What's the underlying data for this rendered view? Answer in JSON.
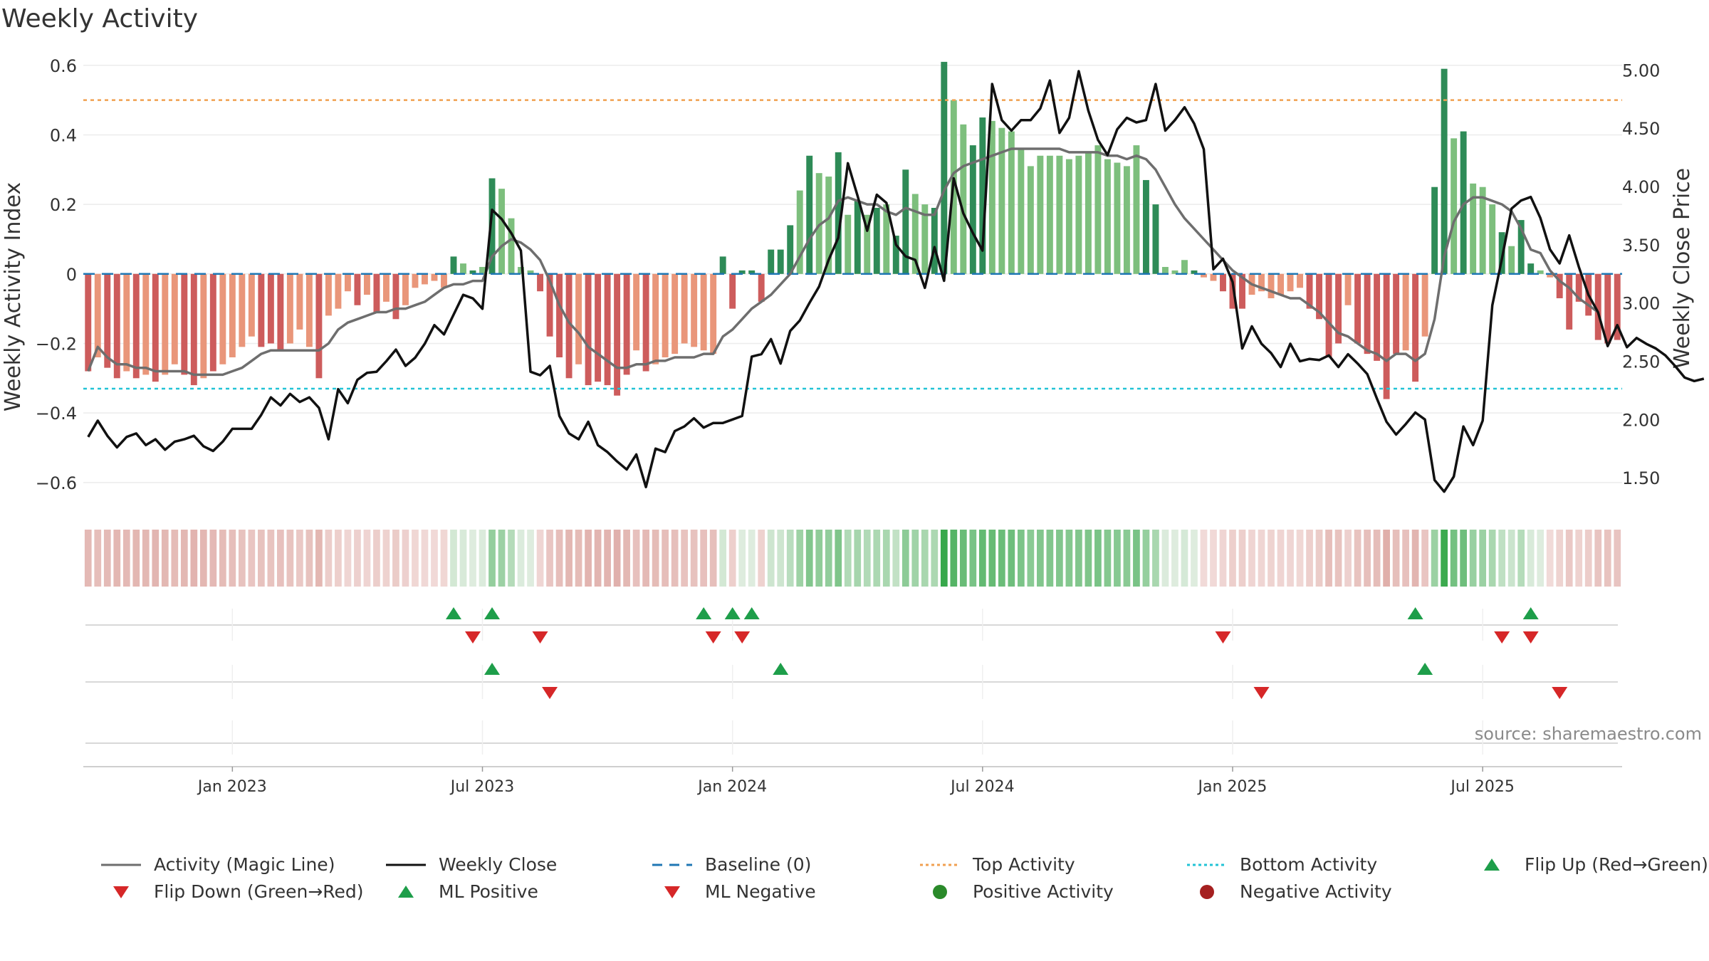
{
  "title": "Weekly Activity",
  "source": "source: sharemaestro.com",
  "colors": {
    "pos_dark": "#2e8b57",
    "pos_light": "#7dbf7d",
    "neg_dark": "#cd5c5c",
    "neg_light": "#e9967a",
    "magic_line": "#6e6e6e",
    "close_line": "#111111",
    "baseline": "#1f77b4",
    "top": "#f0a050",
    "bottom": "#22c3d6",
    "up": "#1e9e4a",
    "down": "#d62728"
  },
  "chart_data": {
    "type": "bar",
    "title": "Weekly Activity",
    "ylabel_left": "Weekly Activity Index",
    "ylabel_right": "Weekly Close Price",
    "ylim_left": [
      -0.67,
      0.62
    ],
    "ylim_right": [
      1.25,
      5.1
    ],
    "yticks_left": [
      0.6,
      0.4,
      0.2,
      0,
      -0.2,
      -0.4,
      -0.6
    ],
    "ytick_labels_left": [
      "0.6",
      "0.4",
      "0.2",
      "0",
      "−0.2",
      "−0.4",
      "−0.6"
    ],
    "yticks_right": [
      5.0,
      4.5,
      4.0,
      3.5,
      3.0,
      2.5,
      2.0,
      1.5
    ],
    "ytick_labels_right": [
      "5.00",
      "4.50",
      "4.00",
      "3.50",
      "3.00",
      "2.50",
      "2.00",
      "1.50"
    ],
    "top_activity": 0.5,
    "bottom_activity": -0.33,
    "baseline": 0,
    "x_start_week_index": 0,
    "xtick_labels": [
      "Jan 2023",
      "Jul 2023",
      "Jan 2024",
      "Jul 2024",
      "Jan 2025",
      "Jul 2025"
    ],
    "xtick_weeks": [
      15,
      41,
      67,
      93,
      119,
      145
    ],
    "activity": [
      -0.28,
      -0.24,
      -0.27,
      -0.3,
      -0.28,
      -0.3,
      -0.29,
      -0.31,
      -0.29,
      -0.26,
      -0.29,
      -0.32,
      -0.3,
      -0.28,
      -0.26,
      -0.24,
      -0.21,
      -0.18,
      -0.21,
      -0.2,
      -0.22,
      -0.2,
      -0.16,
      -0.21,
      -0.3,
      -0.12,
      -0.1,
      -0.05,
      -0.09,
      -0.06,
      -0.11,
      -0.08,
      -0.13,
      -0.09,
      -0.04,
      -0.03,
      -0.02,
      -0.04,
      0.05,
      0.03,
      0.01,
      0.02,
      0.275,
      0.245,
      0.16,
      0.02,
      0.01,
      -0.05,
      -0.18,
      -0.24,
      -0.3,
      -0.26,
      -0.32,
      -0.31,
      -0.32,
      -0.35,
      -0.29,
      -0.22,
      -0.28,
      -0.26,
      -0.24,
      -0.23,
      -0.2,
      -0.21,
      -0.22,
      -0.23,
      0.05,
      -0.1,
      0.01,
      0.01,
      -0.08,
      0.07,
      0.07,
      0.14,
      0.24,
      0.34,
      0.29,
      0.28,
      0.35,
      0.17,
      0.21,
      0.17,
      0.19,
      0.2,
      0.11,
      0.3,
      0.23,
      0.2,
      0.19,
      0.61,
      0.5,
      0.43,
      0.37,
      0.45,
      0.44,
      0.42,
      0.41,
      0.36,
      0.31,
      0.34,
      0.34,
      0.34,
      0.33,
      0.34,
      0.35,
      0.37,
      0.33,
      0.32,
      0.31,
      0.37,
      0.27,
      0.2,
      0.02,
      0.01,
      0.04,
      0.01,
      -0.01,
      -0.02,
      -0.05,
      -0.1,
      -0.1,
      -0.06,
      -0.05,
      -0.07,
      -0.06,
      -0.05,
      -0.04,
      -0.1,
      -0.13,
      -0.24,
      -0.2,
      -0.09,
      -0.2,
      -0.23,
      -0.25,
      -0.36,
      -0.23,
      -0.22,
      -0.31,
      -0.18,
      0.25,
      0.59,
      0.39,
      0.41,
      0.26,
      0.25,
      0.2,
      0.12,
      0.08,
      0.155,
      0.03,
      0.01,
      -0.01,
      -0.07,
      -0.16,
      -0.08,
      -0.12,
      -0.19,
      -0.2,
      -0.19
    ],
    "bar_intensity": [
      1,
      0,
      1,
      1,
      0,
      1,
      0,
      1,
      0,
      0,
      1,
      1,
      0,
      1,
      0,
      0,
      0,
      0,
      1,
      1,
      1,
      0,
      0,
      0,
      1,
      0,
      0,
      0,
      1,
      0,
      1,
      0,
      1,
      0,
      0,
      0,
      0,
      0,
      1,
      0,
      1,
      0,
      1,
      0,
      0,
      0,
      0,
      1,
      1,
      1,
      1,
      0,
      1,
      1,
      1,
      1,
      1,
      0,
      1,
      0,
      0,
      0,
      0,
      0,
      0,
      0,
      1,
      1,
      1,
      1,
      1,
      1,
      1,
      1,
      0,
      1,
      0,
      0,
      1,
      0,
      1,
      0,
      1,
      0,
      1,
      1,
      0,
      0,
      1,
      1,
      0,
      0,
      1,
      1,
      0,
      0,
      0,
      0,
      0,
      0,
      0,
      0,
      0,
      0,
      0,
      0,
      0,
      0,
      0,
      0,
      1,
      1,
      0,
      0,
      0,
      1,
      0,
      0,
      1,
      1,
      1,
      0,
      0,
      0,
      0,
      0,
      0,
      1,
      1,
      1,
      1,
      0,
      1,
      1,
      1,
      1,
      1,
      0,
      1,
      0,
      1,
      1,
      0,
      1,
      0,
      0,
      0,
      1,
      0,
      1,
      1,
      0,
      0,
      1,
      1,
      1,
      1,
      1,
      1,
      1
    ],
    "magic_line": [
      -0.28,
      -0.21,
      -0.24,
      -0.26,
      -0.26,
      -0.27,
      -0.27,
      -0.28,
      -0.28,
      -0.28,
      -0.28,
      -0.29,
      -0.29,
      -0.29,
      -0.29,
      -0.28,
      -0.27,
      -0.25,
      -0.23,
      -0.22,
      -0.22,
      -0.22,
      -0.22,
      -0.22,
      -0.22,
      -0.2,
      -0.16,
      -0.14,
      -0.13,
      -0.12,
      -0.11,
      -0.11,
      -0.1,
      -0.1,
      -0.09,
      -0.08,
      -0.06,
      -0.04,
      -0.03,
      -0.03,
      -0.02,
      -0.02,
      0.05,
      0.08,
      0.1,
      0.09,
      0.07,
      0.04,
      -0.02,
      -0.09,
      -0.14,
      -0.17,
      -0.21,
      -0.23,
      -0.25,
      -0.27,
      -0.27,
      -0.26,
      -0.26,
      -0.25,
      -0.25,
      -0.24,
      -0.24,
      -0.24,
      -0.23,
      -0.23,
      -0.18,
      -0.16,
      -0.13,
      -0.1,
      -0.08,
      -0.06,
      -0.03,
      0,
      0.05,
      0.1,
      0.14,
      0.16,
      0.21,
      0.22,
      0.21,
      0.2,
      0.2,
      0.18,
      0.17,
      0.19,
      0.18,
      0.17,
      0.17,
      0.24,
      0.29,
      0.31,
      0.32,
      0.33,
      0.34,
      0.35,
      0.36,
      0.36,
      0.36,
      0.36,
      0.36,
      0.36,
      0.35,
      0.35,
      0.35,
      0.35,
      0.34,
      0.34,
      0.33,
      0.34,
      0.33,
      0.3,
      0.25,
      0.2,
      0.16,
      0.13,
      0.1,
      0.07,
      0.04,
      0.01,
      -0.01,
      -0.03,
      -0.04,
      -0.05,
      -0.06,
      -0.07,
      -0.07,
      -0.09,
      -0.11,
      -0.14,
      -0.17,
      -0.18,
      -0.2,
      -0.22,
      -0.23,
      -0.25,
      -0.23,
      -0.23,
      -0.25,
      -0.23,
      -0.13,
      0.05,
      0.15,
      0.2,
      0.22,
      0.22,
      0.21,
      0.2,
      0.18,
      0.13,
      0.07,
      0.06,
      0.01,
      -0.02,
      -0.04,
      -0.07,
      -0.09,
      -0.11
    ],
    "weekly_close": [
      1.85,
      1.99,
      1.86,
      1.76,
      1.85,
      1.88,
      1.78,
      1.83,
      1.74,
      1.81,
      1.83,
      1.86,
      1.77,
      1.73,
      1.81,
      1.92,
      1.92,
      1.92,
      2.04,
      2.19,
      2.12,
      2.22,
      2.15,
      2.19,
      2.1,
      1.83,
      2.26,
      2.14,
      2.34,
      2.4,
      2.41,
      2.5,
      2.6,
      2.46,
      2.53,
      2.65,
      2.81,
      2.73,
      2.9,
      3.07,
      3.04,
      2.95,
      3.8,
      3.72,
      3.6,
      3.45,
      2.41,
      2.38,
      2.46,
      2.03,
      1.88,
      1.83,
      1.98,
      1.78,
      1.72,
      1.64,
      1.57,
      1.7,
      1.42,
      1.75,
      1.72,
      1.9,
      1.94,
      2.01,
      1.93,
      1.97,
      1.97,
      2.0,
      2.03,
      2.54,
      2.56,
      2.69,
      2.48,
      2.76,
      2.85,
      3.0,
      3.14,
      3.37,
      3.56,
      4.2,
      3.92,
      3.62,
      3.93,
      3.86,
      3.5,
      3.4,
      3.37,
      3.13,
      3.48,
      3.19,
      4.07,
      3.77,
      3.6,
      3.45,
      4.88,
      4.57,
      4.48,
      4.57,
      4.57,
      4.67,
      4.91,
      4.46,
      4.59,
      4.99,
      4.65,
      4.4,
      4.27,
      4.49,
      4.59,
      4.55,
      4.57,
      4.88,
      4.48,
      4.57,
      4.68,
      4.54,
      4.32,
      3.29,
      3.38,
      3.18,
      2.61,
      2.8,
      2.65,
      2.57,
      2.45,
      2.65,
      2.5,
      2.52,
      2.51,
      2.55,
      2.45,
      2.56,
      2.48,
      2.39,
      2.18,
      1.98,
      1.87,
      1.96,
      2.06,
      2.0,
      1.48,
      1.38,
      1.51,
      1.94,
      1.78,
      1.99,
      2.98,
      3.38,
      3.81,
      3.88,
      3.91,
      3.73,
      3.46,
      3.34,
      3.58,
      3.31,
      3.07,
      2.92,
      2.63,
      2.81,
      2.62,
      2.7,
      2.65,
      2.61,
      2.55,
      2.46,
      2.36,
      2.33,
      2.35
    ],
    "flip_up_weeks": [
      38,
      42,
      64,
      67,
      69,
      138,
      150
    ],
    "flip_down_weeks": [
      40,
      47,
      65,
      68,
      118,
      147,
      150
    ],
    "ml_positive_weeks": [
      42,
      72,
      139
    ],
    "ml_negative_weeks": [
      48,
      122,
      153
    ],
    "legend": [
      {
        "label": "Activity (Magic Line)",
        "type": "line",
        "color": "#6e6e6e"
      },
      {
        "label": "Weekly Close",
        "type": "line",
        "color": "#111111"
      },
      {
        "label": "Baseline (0)",
        "type": "dash",
        "color": "#1f77b4"
      },
      {
        "label": "Top Activity",
        "type": "dot",
        "color": "#f0a050"
      },
      {
        "label": "Bottom Activity",
        "type": "dot",
        "color": "#22c3d6"
      },
      {
        "label": "Flip Up (Red→Green)",
        "type": "tri-up",
        "color": "#1e9e4a"
      },
      {
        "label": "Flip Down (Green→Red)",
        "type": "tri-down",
        "color": "#d62728"
      },
      {
        "label": "ML Positive",
        "type": "tri-up",
        "color": "#1e9e4a"
      },
      {
        "label": "ML Negative",
        "type": "tri-down",
        "color": "#d62728"
      },
      {
        "label": "Positive Activity",
        "type": "circle",
        "color": "#2a8a2a"
      },
      {
        "label": "Negative Activity",
        "type": "circle",
        "color": "#a52020"
      }
    ]
  }
}
